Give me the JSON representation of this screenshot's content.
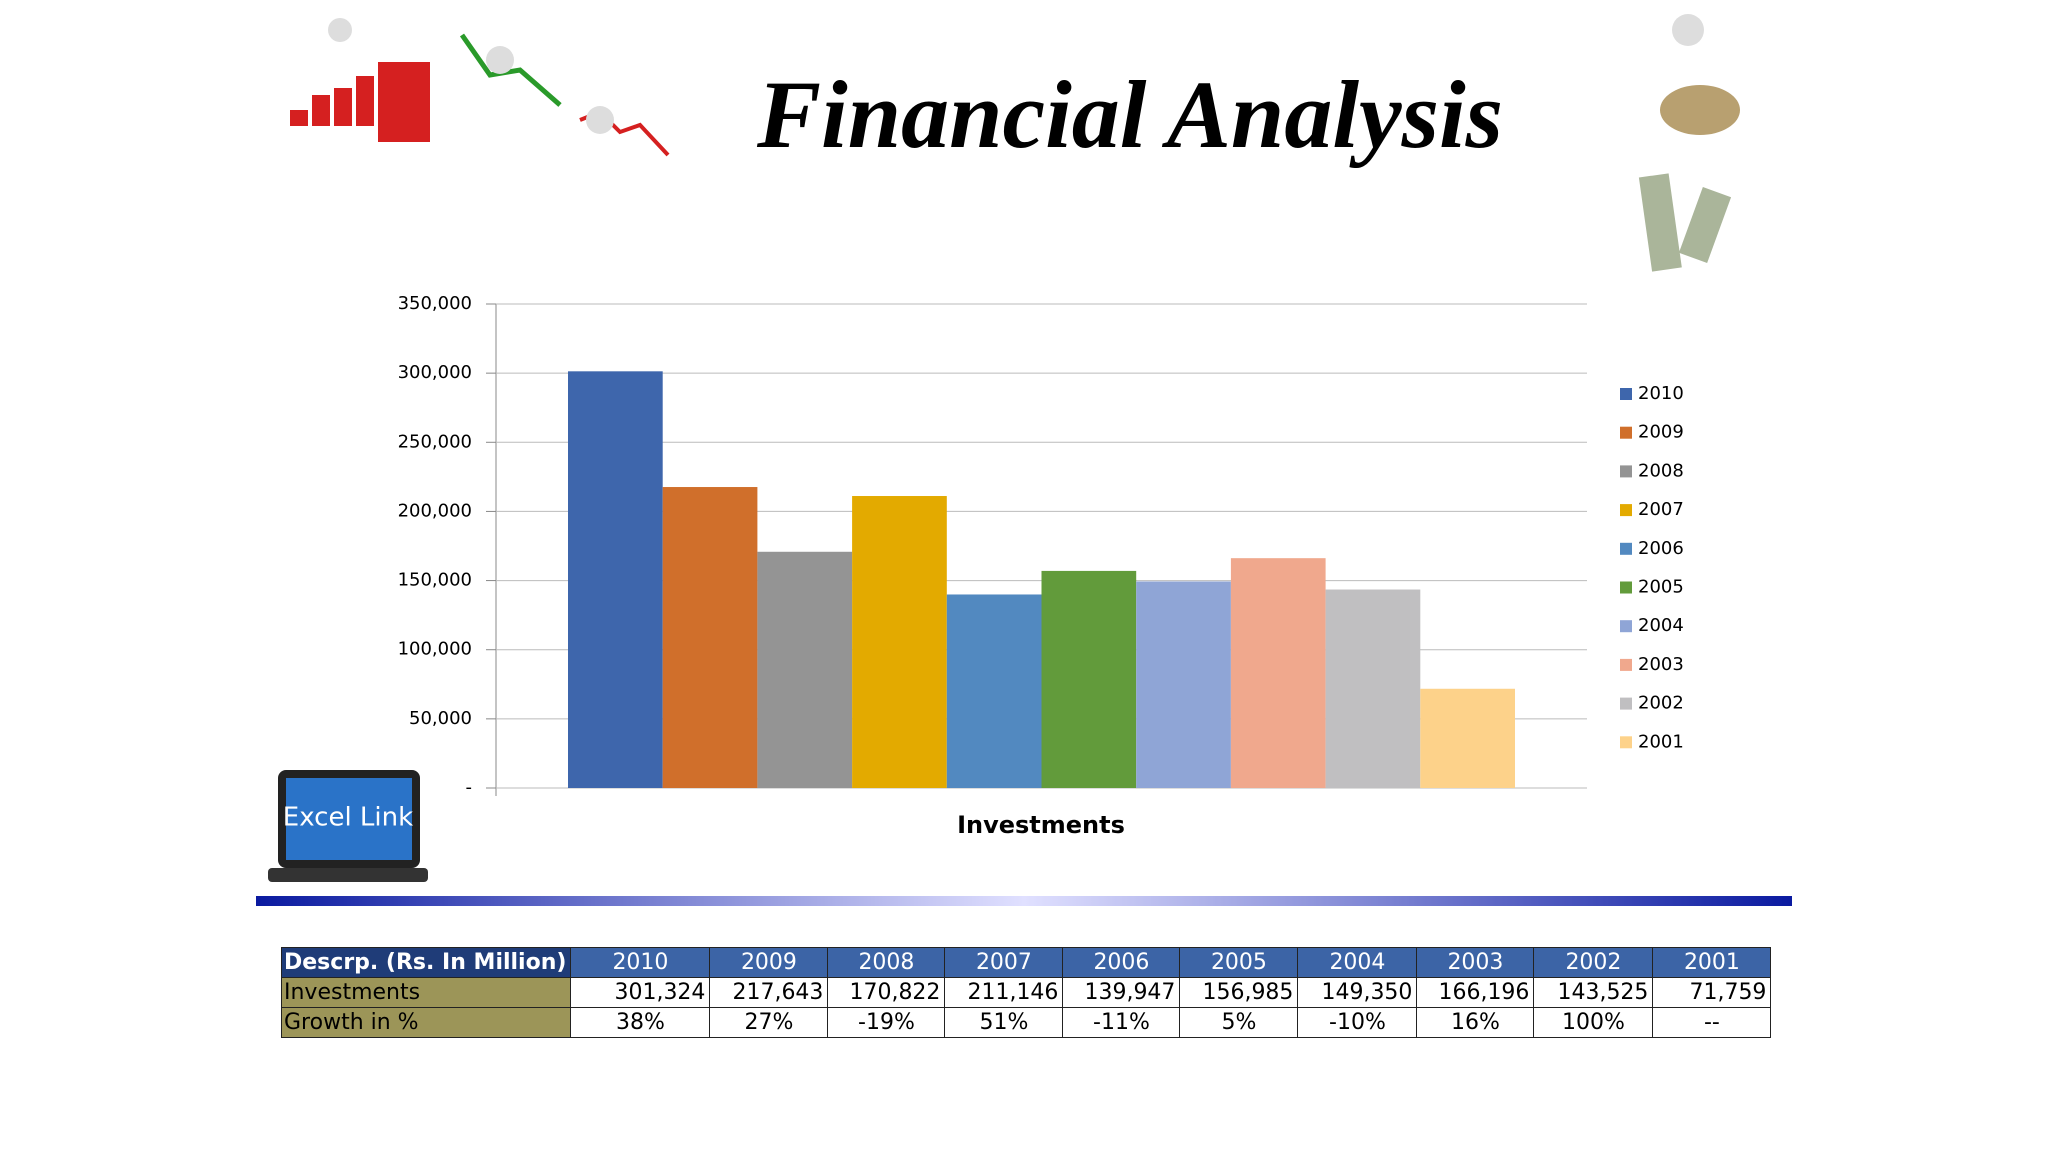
{
  "title": "Financial Analysis",
  "excel_link": "Excel Link",
  "chart_data": {
    "type": "bar",
    "x_label": "Investments",
    "categories": [
      "Investments"
    ],
    "ylim": [
      0,
      350000
    ],
    "yticks": [
      {
        "value": 0,
        "label": "-"
      },
      {
        "value": 50000,
        "label": "50,000"
      },
      {
        "value": 100000,
        "label": "100,000"
      },
      {
        "value": 150000,
        "label": "150,000"
      },
      {
        "value": 200000,
        "label": "200,000"
      },
      {
        "value": 250000,
        "label": "250,000"
      },
      {
        "value": 300000,
        "label": "300,000"
      },
      {
        "value": 350000,
        "label": "350,000"
      }
    ],
    "grid": true,
    "legend": "right",
    "series": [
      {
        "name": "2010",
        "color": "#3e66ac",
        "values": [
          301324
        ]
      },
      {
        "name": "2009",
        "color": "#d06f2b",
        "values": [
          217643
        ]
      },
      {
        "name": "2008",
        "color": "#949494",
        "values": [
          170822
        ]
      },
      {
        "name": "2007",
        "color": "#e3aa00",
        "values": [
          211146
        ]
      },
      {
        "name": "2006",
        "color": "#5289c0",
        "values": [
          139947
        ]
      },
      {
        "name": "2005",
        "color": "#629b3b",
        "values": [
          156985
        ]
      },
      {
        "name": "2004",
        "color": "#8fa5d6",
        "values": [
          149350
        ]
      },
      {
        "name": "2003",
        "color": "#f0a88d",
        "values": [
          166196
        ]
      },
      {
        "name": "2002",
        "color": "#c0bfc1",
        "values": [
          143525
        ]
      },
      {
        "name": "2001",
        "color": "#fdd28a",
        "values": [
          71759
        ]
      }
    ]
  },
  "table": {
    "header": [
      "Descrp. (Rs. In Million)",
      "2010",
      "2009",
      "2008",
      "2007",
      "2006",
      "2005",
      "2004",
      "2003",
      "2002",
      "2001"
    ],
    "rows": [
      [
        "Investments",
        "301,324",
        "217,643",
        "170,822",
        "211,146",
        "139,947",
        "156,985",
        "149,350",
        "166,196",
        "143,525",
        "71,759"
      ],
      [
        "Growth in %",
        "38%",
        "27%",
        "-19%",
        "51%",
        "-11%",
        "5%",
        "-10%",
        "16%",
        "100%",
        "--"
      ]
    ]
  }
}
